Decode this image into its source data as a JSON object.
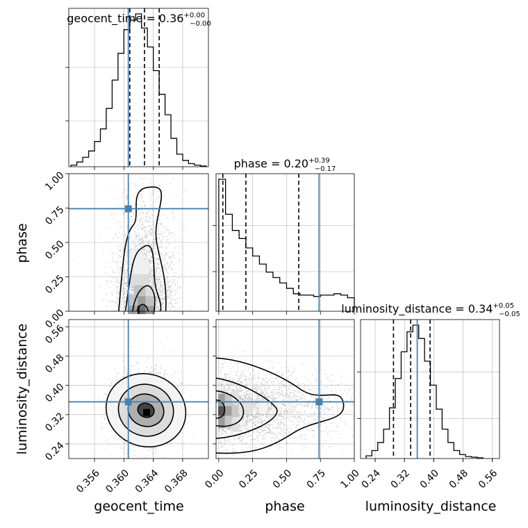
{
  "chart_data": [
    {
      "type": "histogram",
      "panel": "geocent_time-marginal",
      "title": {
        "label": "geocent_time",
        "median": "0.36",
        "upper": "+0.00",
        "lower": "−0.00"
      },
      "xlim": [
        0.3525,
        0.3715
      ],
      "x_ticks": [
        "0.356",
        "0.360",
        "0.364",
        "0.368"
      ],
      "bin_start": 0.3528,
      "bin_width": 0.0008,
      "counts": [
        0.01,
        0.03,
        0.06,
        0.1,
        0.16,
        0.24,
        0.37,
        0.55,
        0.72,
        0.87,
        0.93,
        0.97,
        0.88,
        0.76,
        0.61,
        0.46,
        0.33,
        0.18,
        0.08,
        0.04,
        0.02,
        0.01,
        0.005
      ],
      "quantiles": [
        0.3608,
        0.3628,
        0.3648
      ],
      "truth": 0.3606
    },
    {
      "type": "histogram",
      "panel": "phase-marginal",
      "title": {
        "label": "phase",
        "median": "0.20",
        "upper": "+0.39",
        "lower": "−0.17"
      },
      "xlim": [
        -0.02,
        1.0
      ],
      "bin_start": 0.0,
      "bin_width": 0.05,
      "counts": [
        0.98,
        0.72,
        0.6,
        0.54,
        0.47,
        0.41,
        0.35,
        0.29,
        0.25,
        0.21,
        0.17,
        0.13,
        0.12,
        0.12,
        0.11,
        0.12,
        0.12,
        0.13,
        0.12,
        0.1
      ],
      "quantiles": [
        0.03,
        0.2,
        0.59
      ],
      "truth": 0.74
    },
    {
      "type": "histogram",
      "panel": "luminosity_distance-marginal",
      "title": {
        "label": "luminosity_distance",
        "median": "0.34",
        "upper": "+0.05",
        "lower": "−0.05"
      },
      "xlim": [
        0.2,
        0.58
      ],
      "x_ticks": [
        "0.24",
        "0.32",
        "0.40",
        "0.48",
        "0.56"
      ],
      "bin_start": 0.215,
      "bin_width": 0.016,
      "counts": [
        0.02,
        0.06,
        0.12,
        0.22,
        0.38,
        0.6,
        0.8,
        0.95,
        1.0,
        0.9,
        0.73,
        0.55,
        0.37,
        0.22,
        0.12,
        0.06,
        0.03,
        0.015,
        0.01,
        0.005
      ],
      "quantiles": [
        0.29,
        0.337,
        0.39
      ],
      "truth": 0.355
    },
    {
      "type": "contour",
      "panel": "phase-vs-geocent_time",
      "x": "geocent_time",
      "y": "phase",
      "ylim": [
        0.0,
        1.0
      ],
      "y_ticks": [
        "0.00",
        "0.25",
        "0.50",
        "0.75",
        "1.00"
      ],
      "truth": [
        0.3606,
        0.745
      ],
      "levels": 4
    },
    {
      "type": "contour",
      "panel": "luminosity_distance-vs-geocent_time",
      "x": "geocent_time",
      "y": "luminosity_distance",
      "ylim": [
        0.2,
        0.58
      ],
      "y_ticks": [
        "0.24",
        "0.32",
        "0.40",
        "0.48",
        "0.56"
      ],
      "truth": [
        0.3606,
        0.355
      ],
      "levels": 4
    },
    {
      "type": "contour",
      "panel": "luminosity_distance-vs-phase",
      "x": "phase",
      "y": "luminosity_distance",
      "x_ticks": [
        "0.00",
        "0.25",
        "0.50",
        "0.75",
        "1.00"
      ],
      "truth": [
        0.74,
        0.355
      ],
      "levels": 4
    }
  ],
  "axis_labels": {
    "x": [
      "geocent_time",
      "phase",
      "luminosity_distance"
    ],
    "y": [
      "phase",
      "luminosity_distance"
    ]
  },
  "colors": {
    "truth": "#4682b4",
    "line": "#000000",
    "grid": "#b0b0b0"
  }
}
